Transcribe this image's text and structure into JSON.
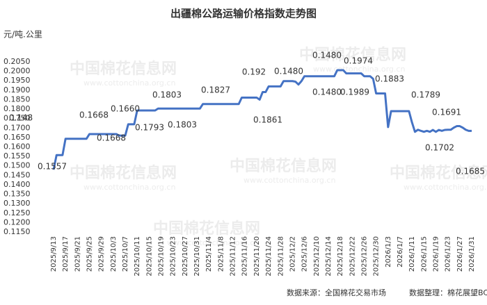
{
  "chart_data": {
    "type": "line",
    "title": "出疆棉公路运输价格指数走势图",
    "y_label": "元/吨.公里",
    "source": "数据来源：全国棉花交易市场",
    "compiler": "数据整理：棉花展望BCO",
    "watermark": "中国棉花信息网",
    "watermark_url": "www.cottonchina.org.cn",
    "color": "#4472c4",
    "grid": false,
    "ylim": [
      0.115,
      0.205
    ],
    "yticks": [
      {
        "value": 0.205,
        "label": "0.2050"
      },
      {
        "value": 0.2,
        "label": "0.2000"
      },
      {
        "value": 0.195,
        "label": "0.1950"
      },
      {
        "value": 0.19,
        "label": "0.1900"
      },
      {
        "value": 0.185,
        "label": "0.1850"
      },
      {
        "value": 0.18,
        "label": "0.1800"
      },
      {
        "value": 0.175,
        "label": "0.1750"
      },
      {
        "value": 0.17,
        "label": "0.1700"
      },
      {
        "value": 0.165,
        "label": "0.1650"
      },
      {
        "value": 0.16,
        "label": "0.1600"
      },
      {
        "value": 0.155,
        "label": "0.1550"
      },
      {
        "value": 0.15,
        "label": "0.1500"
      },
      {
        "value": 0.145,
        "label": "0.1450"
      },
      {
        "value": 0.14,
        "label": "0.1400"
      },
      {
        "value": 0.135,
        "label": "0.1350"
      },
      {
        "value": 0.13,
        "label": "0.1300"
      },
      {
        "value": 0.125,
        "label": "0.1250"
      },
      {
        "value": 0.12,
        "label": "0.1200"
      },
      {
        "value": 0.115,
        "label": "0.1150"
      }
    ],
    "categories": [
      "2025/9/13",
      null,
      null,
      null,
      "2025/9/17",
      null,
      null,
      null,
      "2025/9/21",
      null,
      null,
      null,
      "2025/9/25",
      null,
      null,
      null,
      "2025/9/29",
      null,
      null,
      null,
      "2025/10/3",
      null,
      null,
      null,
      "2025/10/7",
      null,
      null,
      null,
      "2025/10/11",
      null,
      null,
      null,
      "2025/10/15",
      null,
      null,
      null,
      "2025/10/19",
      null,
      null,
      null,
      "2025/10/23",
      null,
      null,
      null,
      "2025/10/27",
      null,
      null,
      null,
      "2025/10/31",
      null,
      null,
      null,
      "2025/11/4",
      null,
      null,
      null,
      "2025/11/8",
      null,
      null,
      null,
      "2025/11/12",
      null,
      null,
      null,
      "2025/11/16",
      null,
      null,
      null,
      "2025/11/20",
      null,
      null,
      null,
      "2025/11/24",
      null,
      null,
      null,
      "2025/11/28",
      null,
      null,
      null,
      "2025/12/2",
      null,
      null,
      null,
      "2025/12/6",
      null,
      null,
      null,
      "2025/12/10",
      null,
      null,
      null,
      "2025/12/14",
      null,
      null,
      null,
      "2025/12/18",
      null,
      null,
      null,
      "2025/12/22",
      null,
      null,
      null,
      "2025/12/26",
      null,
      null,
      null,
      "2025/12/30",
      null,
      null,
      null,
      "2026/1/3",
      null,
      null,
      null,
      "2026/1/7",
      null,
      null,
      null,
      "2026/1/11",
      null,
      null,
      null,
      "2026/1/15",
      null,
      null,
      null,
      "2026/1/19",
      null,
      null,
      null,
      "2026/1/23",
      null,
      null,
      null,
      "2026/1/27",
      null,
      null,
      null,
      "2026/1/31"
    ],
    "values": [
      0.148,
      0.1557,
      0.1557,
      0.1557,
      0.1643,
      0.1643,
      0.1643,
      0.1643,
      0.1643,
      0.1643,
      0.1643,
      0.1643,
      0.1668,
      0.1668,
      0.1668,
      0.1668,
      0.1668,
      0.1668,
      0.1668,
      0.1668,
      0.1668,
      0.1668,
      0.166,
      0.166,
      0.166,
      0.172,
      0.172,
      0.172,
      0.1793,
      0.1793,
      0.1793,
      0.1793,
      0.1793,
      0.1793,
      0.1793,
      0.1803,
      0.1803,
      0.1803,
      0.1803,
      0.1803,
      0.1803,
      0.1803,
      0.1803,
      0.1803,
      0.1803,
      0.1803,
      0.1803,
      0.1803,
      0.1803,
      0.1803,
      0.1827,
      0.1827,
      0.1827,
      0.1827,
      0.1827,
      0.1827,
      0.1827,
      0.1827,
      0.1827,
      0.1827,
      0.1827,
      0.1827,
      0.1827,
      0.1861,
      0.1861,
      0.1861,
      0.1861,
      0.1861,
      0.1861,
      0.185,
      0.189,
      0.189,
      0.192,
      0.192,
      0.192,
      0.192,
      0.192,
      0.1948,
      0.1948,
      0.1948,
      0.1948,
      0.1945,
      0.193,
      0.1948,
      0.1974,
      0.1974,
      0.1974,
      0.1974,
      0.1974,
      0.1974,
      0.1974,
      0.1974,
      0.1974,
      0.1974,
      0.1974,
      0.2006,
      0.2006,
      0.2006,
      0.1989,
      0.1989,
      0.1989,
      0.1989,
      0.1989,
      0.1989,
      0.1974,
      0.1974,
      0.1974,
      0.196,
      0.1883,
      0.1883,
      0.1883,
      0.1883,
      0.1705,
      0.1789,
      0.1789,
      0.1789,
      0.1789,
      0.1789,
      0.1789,
      0.1789,
      0.173,
      0.168,
      0.1691,
      0.1685,
      0.168,
      0.1685,
      0.168,
      0.169,
      0.168,
      0.169,
      0.1685,
      0.169,
      0.1691,
      0.1691,
      0.1702,
      0.171,
      0.171,
      0.1702,
      0.1691,
      0.1685,
      0.1685
    ],
    "annotations": [
      "0.148",
      "0.1557",
      "0.1668",
      "0.1668",
      "0.1660",
      "0.1793",
      "0.1803",
      "0.1803",
      "0.1827",
      "0.192",
      "0.1861",
      "0.1480",
      "0.1480",
      "0.1480",
      "0.1974",
      "0.1989",
      "0.1883",
      "0.1789",
      "0.1691",
      "0.1702",
      "0.1685"
    ]
  }
}
